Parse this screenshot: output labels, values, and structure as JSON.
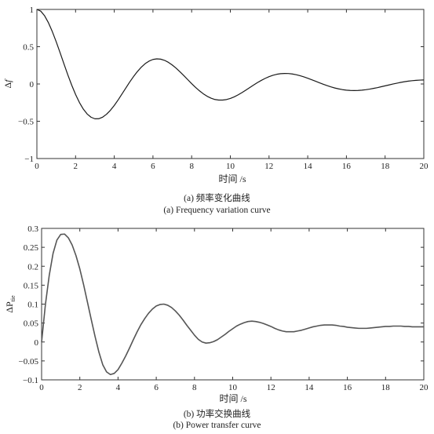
{
  "chart_data": [
    {
      "type": "line",
      "id": "a",
      "caption_cn": "(a) 频率变化曲线",
      "caption_en": "(a) Frequency variation curve",
      "xlabel": "时间 /s",
      "ylabel_symbol": "Δ",
      "ylabel_var": "f",
      "xlim": [
        0,
        20
      ],
      "ylim": [
        -1,
        1
      ],
      "xticks": [
        0,
        2,
        4,
        6,
        8,
        10,
        12,
        14,
        16,
        18,
        20
      ],
      "xtick_labels": [
        "0",
        "2",
        "4",
        "6",
        "8",
        "10",
        "12",
        "14",
        "16",
        "18",
        "20"
      ],
      "yticks": [
        -1,
        -0.5,
        0,
        0.5,
        1
      ],
      "ytick_labels": [
        "−1",
        "−0.5",
        "0",
        "0.5",
        "1"
      ],
      "line_color": "#1a1a1a",
      "series": [
        {
          "x": [
            0,
            0.2,
            0.4,
            0.6,
            0.8,
            1.0,
            1.2,
            1.4,
            1.6,
            1.8,
            2.0,
            2.2,
            2.4,
            2.6,
            2.8,
            3.0,
            3.2,
            3.4,
            3.6,
            3.8,
            4.0,
            4.2,
            4.4,
            4.6,
            4.8,
            5.0,
            5.2,
            5.4,
            5.6,
            5.8,
            6.0,
            6.2,
            6.4,
            6.6,
            6.8,
            7.0,
            7.2,
            7.4,
            7.6,
            7.8,
            8.0,
            8.2,
            8.4,
            8.6,
            8.8,
            9.0,
            9.2,
            9.4,
            9.6,
            9.8,
            10.0,
            10.2,
            10.4,
            10.6,
            10.8,
            11.0,
            11.2,
            11.4,
            11.6,
            11.8,
            12.0,
            12.2,
            12.4,
            12.6,
            12.8,
            13.0,
            13.2,
            13.4,
            13.6,
            13.8,
            14.0,
            14.2,
            14.4,
            14.6,
            14.8,
            15.0,
            15.2,
            15.4,
            15.6,
            15.8,
            16.0,
            16.2,
            16.4,
            16.6,
            16.8,
            17.0,
            17.2,
            17.4,
            17.6,
            17.8,
            18.0,
            18.2,
            18.4,
            18.6,
            18.8,
            19.0,
            19.2,
            19.4,
            19.6,
            19.8,
            20.0
          ],
          "y": [
            1.0,
            0.977,
            0.914,
            0.82,
            0.701,
            0.565,
            0.419,
            0.269,
            0.122,
            -0.016,
            -0.141,
            -0.249,
            -0.337,
            -0.403,
            -0.446,
            -0.467,
            -0.466,
            -0.445,
            -0.406,
            -0.353,
            -0.288,
            -0.214,
            -0.134,
            -0.053,
            0.027,
            0.101,
            0.168,
            0.226,
            0.273,
            0.307,
            0.329,
            0.337,
            0.333,
            0.317,
            0.29,
            0.254,
            0.211,
            0.163,
            0.111,
            0.058,
            0.005,
            -0.045,
            -0.091,
            -0.131,
            -0.165,
            -0.19,
            -0.208,
            -0.216,
            -0.216,
            -0.209,
            -0.194,
            -0.173,
            -0.146,
            -0.116,
            -0.083,
            -0.049,
            -0.015,
            0.018,
            0.048,
            0.075,
            0.098,
            0.116,
            0.13,
            0.138,
            0.141,
            0.14,
            0.134,
            0.124,
            0.111,
            0.095,
            0.077,
            0.057,
            0.037,
            0.017,
            -0.003,
            -0.022,
            -0.039,
            -0.054,
            -0.066,
            -0.076,
            -0.083,
            -0.087,
            -0.088,
            -0.087,
            -0.083,
            -0.077,
            -0.069,
            -0.059,
            -0.049,
            -0.037,
            -0.025,
            -0.013,
            -0.001,
            0.01,
            0.021,
            0.03,
            0.038,
            0.044,
            0.049,
            0.052,
            0.054
          ]
        }
      ]
    },
    {
      "type": "line",
      "id": "b",
      "caption_cn": "(b) 功率交换曲线",
      "caption_en": "(b) Power transfer curve",
      "xlabel": "时间 /s",
      "ylabel_symbol": "ΔP",
      "ylabel_sub": "tie",
      "xlim": [
        0,
        20
      ],
      "ylim": [
        -0.1,
        0.3
      ],
      "xticks": [
        0,
        2,
        4,
        6,
        8,
        10,
        12,
        14,
        16,
        18,
        20
      ],
      "xtick_labels": [
        "0",
        "2",
        "4",
        "6",
        "8",
        "10",
        "12",
        "14",
        "16",
        "18",
        "20"
      ],
      "yticks": [
        -0.1,
        -0.05,
        0,
        0.05,
        0.1,
        0.15,
        0.2,
        0.25,
        0.3
      ],
      "ytick_labels": [
        "−0.1",
        "−0.05",
        "0",
        "0.05",
        "0.1",
        "0.15",
        "0.2",
        "0.25",
        "0.3"
      ],
      "line_color": "#555555",
      "series": [
        {
          "x": [
            0,
            0.2,
            0.4,
            0.6,
            0.8,
            1.0,
            1.2,
            1.4,
            1.6,
            1.8,
            2.0,
            2.2,
            2.4,
            2.6,
            2.8,
            3.0,
            3.2,
            3.4,
            3.6,
            3.8,
            4.0,
            4.2,
            4.4,
            4.6,
            4.8,
            5.0,
            5.2,
            5.4,
            5.6,
            5.8,
            6.0,
            6.2,
            6.4,
            6.6,
            6.8,
            7.0,
            7.2,
            7.4,
            7.6,
            7.8,
            8.0,
            8.2,
            8.4,
            8.6,
            8.8,
            9.0,
            9.2,
            9.4,
            9.6,
            9.8,
            10.0,
            10.2,
            10.4,
            10.6,
            10.8,
            11.0,
            11.2,
            11.4,
            11.6,
            11.8,
            12.0,
            12.2,
            12.4,
            12.6,
            12.8,
            13.0,
            13.2,
            13.4,
            13.6,
            13.8,
            14.0,
            14.2,
            14.4,
            14.6,
            14.8,
            15.0,
            15.2,
            15.4,
            15.6,
            15.8,
            16.0,
            16.2,
            16.4,
            16.6,
            16.8,
            17.0,
            17.2,
            17.4,
            17.6,
            17.8,
            18.0,
            18.2,
            18.4,
            18.6,
            18.8,
            19.0,
            19.2,
            19.4,
            19.6,
            19.8,
            20.0
          ],
          "y": [
            0.0,
            0.099,
            0.176,
            0.234,
            0.269,
            0.284,
            0.285,
            0.275,
            0.256,
            0.228,
            0.193,
            0.151,
            0.105,
            0.059,
            0.014,
            -0.027,
            -0.06,
            -0.079,
            -0.086,
            -0.083,
            -0.073,
            -0.056,
            -0.037,
            -0.016,
            0.006,
            0.027,
            0.046,
            0.062,
            0.076,
            0.087,
            0.095,
            0.099,
            0.1,
            0.097,
            0.091,
            0.082,
            0.071,
            0.058,
            0.044,
            0.031,
            0.018,
            0.007,
            0.0,
            -0.003,
            -0.002,
            0.001,
            0.006,
            0.013,
            0.02,
            0.028,
            0.035,
            0.042,
            0.047,
            0.051,
            0.054,
            0.055,
            0.054,
            0.052,
            0.049,
            0.045,
            0.041,
            0.036,
            0.032,
            0.029,
            0.027,
            0.027,
            0.027,
            0.029,
            0.031,
            0.034,
            0.037,
            0.04,
            0.042,
            0.044,
            0.045,
            0.045,
            0.045,
            0.044,
            0.042,
            0.041,
            0.039,
            0.038,
            0.037,
            0.036,
            0.036,
            0.036,
            0.037,
            0.038,
            0.039,
            0.04,
            0.041,
            0.041,
            0.042,
            0.042,
            0.042,
            0.041,
            0.041,
            0.04,
            0.04,
            0.04,
            0.04
          ]
        }
      ]
    }
  ]
}
